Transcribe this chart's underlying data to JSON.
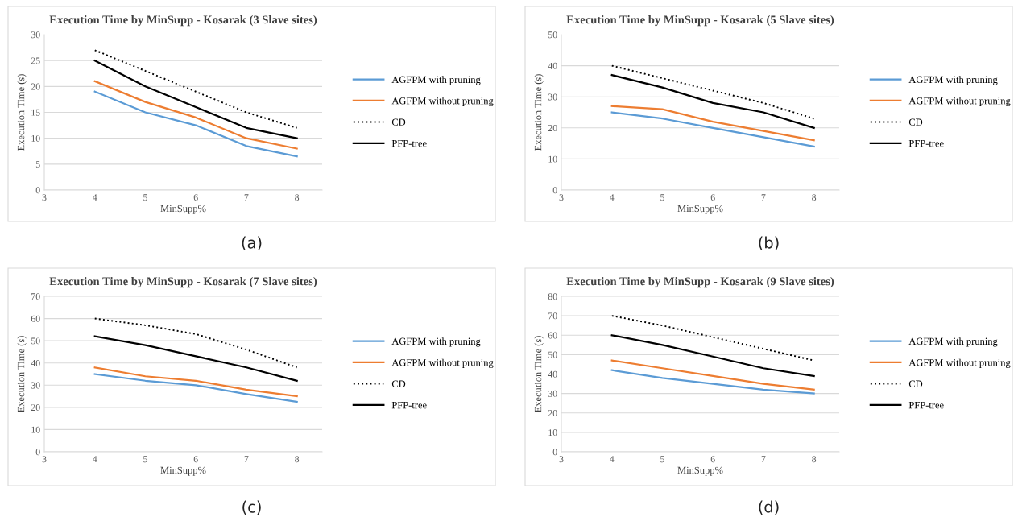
{
  "chart_data": [
    {
      "type": "line",
      "title": "Execution Time by MinSupp - Kosarak (3 Slave sites)",
      "xlabel": "MinSupp%",
      "ylabel": "Execution Time (s)",
      "x": [
        4,
        5,
        6,
        7,
        8
      ],
      "xlim": [
        3,
        8.5
      ],
      "xticks": [
        3,
        4,
        5,
        6,
        7,
        8
      ],
      "ylim": [
        0,
        30
      ],
      "yticks": [
        0,
        5,
        10,
        15,
        20,
        25,
        30
      ],
      "grid": "y",
      "legend": "right",
      "marker": "none",
      "annotations": [
        "(a)"
      ],
      "series": [
        {
          "name": "AGFPM with pruning",
          "color": "#5b9bd5",
          "line_style": "solid",
          "values": [
            19,
            15,
            12.5,
            8.5,
            6.5
          ]
        },
        {
          "name": "AGFPM without pruning",
          "color": "#ed7d31",
          "line_style": "solid",
          "values": [
            21,
            17,
            14,
            10,
            8
          ]
        },
        {
          "name": "CD",
          "color": "#000000",
          "line_style": "dotted",
          "values": [
            27,
            23,
            19,
            15,
            12
          ]
        },
        {
          "name": "PFP-tree",
          "color": "#000000",
          "line_style": "solid",
          "values": [
            25,
            20,
            16,
            12,
            10
          ]
        }
      ]
    },
    {
      "type": "line",
      "title": "Execution Time by MinSupp - Kosarak (5 Slave sites)",
      "xlabel": "MinSupp%",
      "ylabel": "Execution Time (s)",
      "x": [
        4,
        5,
        6,
        7,
        8
      ],
      "xlim": [
        3,
        8.5
      ],
      "xticks": [
        3,
        4,
        5,
        6,
        7,
        8
      ],
      "ylim": [
        0,
        50
      ],
      "yticks": [
        0,
        10,
        20,
        30,
        40,
        50
      ],
      "grid": "y",
      "legend": "right",
      "marker": "none",
      "annotations": [
        "(b)"
      ],
      "series": [
        {
          "name": "AGFPM with pruning",
          "color": "#5b9bd5",
          "line_style": "solid",
          "values": [
            25,
            23,
            20,
            17,
            14
          ]
        },
        {
          "name": "AGFPM without pruning",
          "color": "#ed7d31",
          "line_style": "solid",
          "values": [
            27,
            26,
            22,
            19,
            16
          ]
        },
        {
          "name": "CD",
          "color": "#000000",
          "line_style": "dotted",
          "values": [
            40,
            36,
            32,
            28,
            23
          ]
        },
        {
          "name": "PFP-tree",
          "color": "#000000",
          "line_style": "solid",
          "values": [
            37,
            33,
            28,
            25,
            20
          ]
        }
      ]
    },
    {
      "type": "line",
      "title": "Execution Time by MinSupp - Kosarak (7 Slave sites)",
      "xlabel": "MinSupp%",
      "ylabel": "Execution Time (s)",
      "x": [
        4,
        5,
        6,
        7,
        8
      ],
      "xlim": [
        3,
        8.5
      ],
      "xticks": [
        3,
        4,
        5,
        6,
        7,
        8
      ],
      "ylim": [
        0,
        70
      ],
      "yticks": [
        0,
        10,
        20,
        30,
        40,
        50,
        60,
        70
      ],
      "grid": "y",
      "legend": "right",
      "marker": "none",
      "annotations": [
        "(c)"
      ],
      "series": [
        {
          "name": "AGFPM with pruning",
          "color": "#5b9bd5",
          "line_style": "solid",
          "values": [
            35,
            32,
            30,
            26,
            22.5
          ]
        },
        {
          "name": "AGFPM without pruning",
          "color": "#ed7d31",
          "line_style": "solid",
          "values": [
            38,
            34,
            32,
            28,
            25
          ]
        },
        {
          "name": "CD",
          "color": "#000000",
          "line_style": "dotted",
          "values": [
            60,
            57,
            53,
            46,
            38
          ]
        },
        {
          "name": "PFP-tree",
          "color": "#000000",
          "line_style": "solid",
          "values": [
            52,
            48,
            43,
            38,
            32
          ]
        }
      ]
    },
    {
      "type": "line",
      "title": "Execution Time by MinSupp - Kosarak (9 Slave sites)",
      "xlabel": "MinSupp%",
      "ylabel": "Execution Time (s)",
      "x": [
        4,
        5,
        6,
        7,
        8
      ],
      "xlim": [
        3,
        8.5
      ],
      "xticks": [
        3,
        4,
        5,
        6,
        7,
        8
      ],
      "ylim": [
        0,
        80
      ],
      "yticks": [
        0,
        10,
        20,
        30,
        40,
        50,
        60,
        70,
        80
      ],
      "grid": "y",
      "legend": "right",
      "marker": "none",
      "annotations": [
        "(d)"
      ],
      "series": [
        {
          "name": "AGFPM with pruning",
          "color": "#5b9bd5",
          "line_style": "solid",
          "values": [
            42,
            38,
            35,
            32,
            30
          ]
        },
        {
          "name": "AGFPM without pruning",
          "color": "#ed7d31",
          "line_style": "solid",
          "values": [
            47,
            43,
            39,
            35,
            32
          ]
        },
        {
          "name": "CD",
          "color": "#000000",
          "line_style": "dotted",
          "values": [
            70,
            65,
            59,
            53,
            47
          ]
        },
        {
          "name": "PFP-tree",
          "color": "#000000",
          "line_style": "solid",
          "values": [
            60,
            55,
            49,
            43,
            39
          ]
        }
      ]
    }
  ]
}
